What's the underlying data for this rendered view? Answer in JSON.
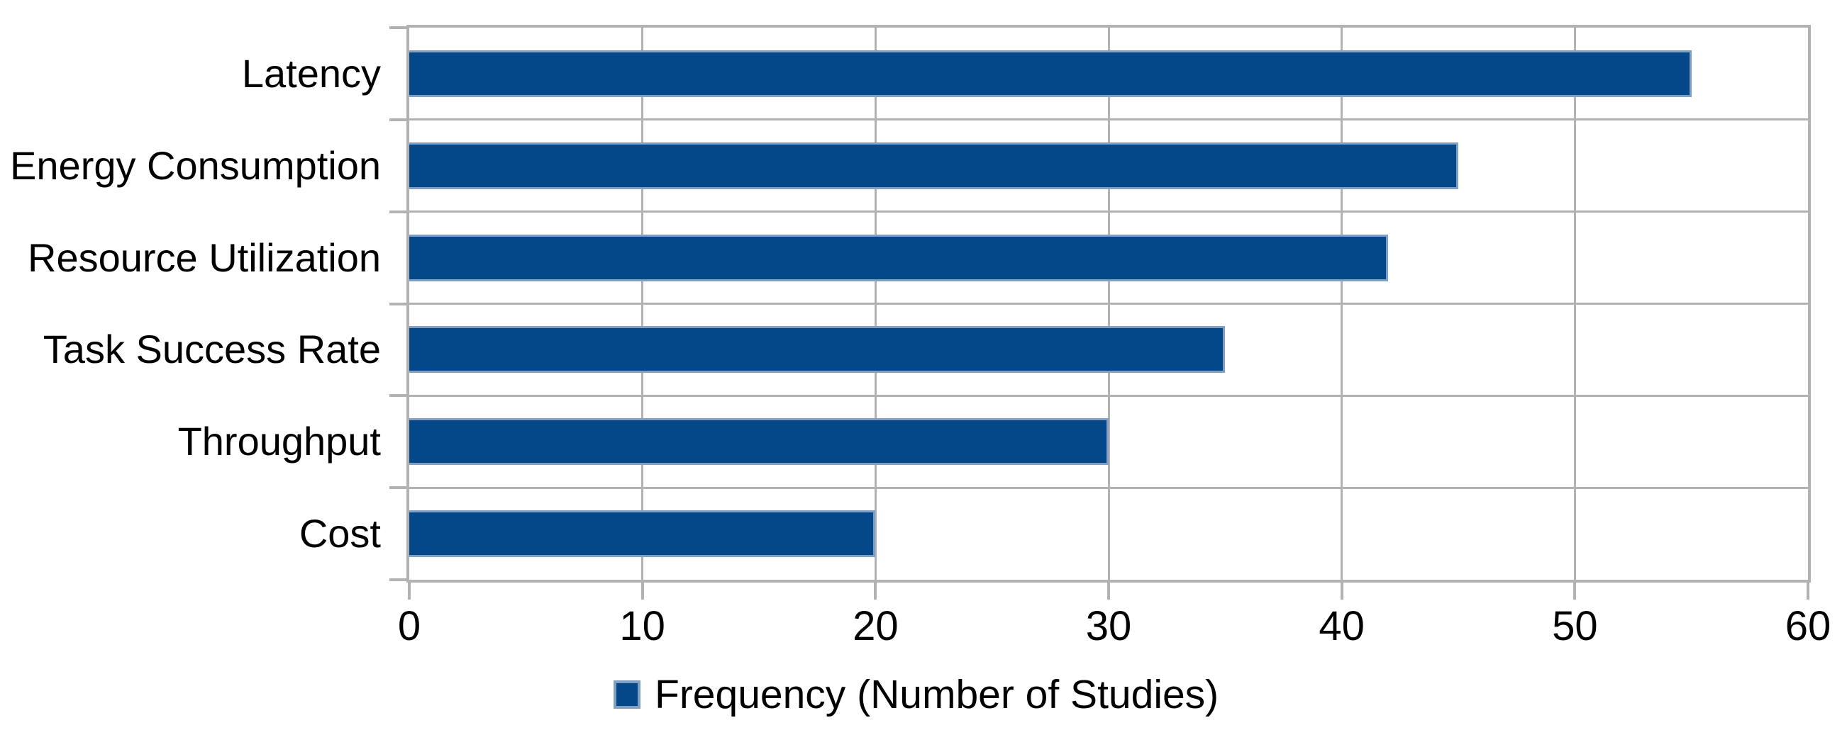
{
  "chart_data": {
    "type": "bar",
    "orientation": "horizontal",
    "title": "",
    "categories": [
      "Latency",
      "Energy Consumption",
      "Resource Utilization",
      "Task Success Rate",
      "Throughput",
      "Cost"
    ],
    "series": [
      {
        "name": "Frequency (Number of Studies)",
        "values": [
          55,
          45,
          42,
          35,
          30,
          20
        ]
      }
    ],
    "legend": "Frequency (Number of Studies)",
    "legend_position": "bottom-center",
    "xlabel": "",
    "ylabel": "",
    "xlim": [
      0,
      60
    ],
    "xticks": [
      0,
      10,
      20,
      30,
      40,
      50,
      60
    ],
    "grid": true,
    "colors": {
      "bar_fill": "#05488a",
      "bar_edge": "#7f9fc4",
      "gridline": "#b2b2b2",
      "text": "#000000",
      "background": "#ffffff"
    }
  }
}
